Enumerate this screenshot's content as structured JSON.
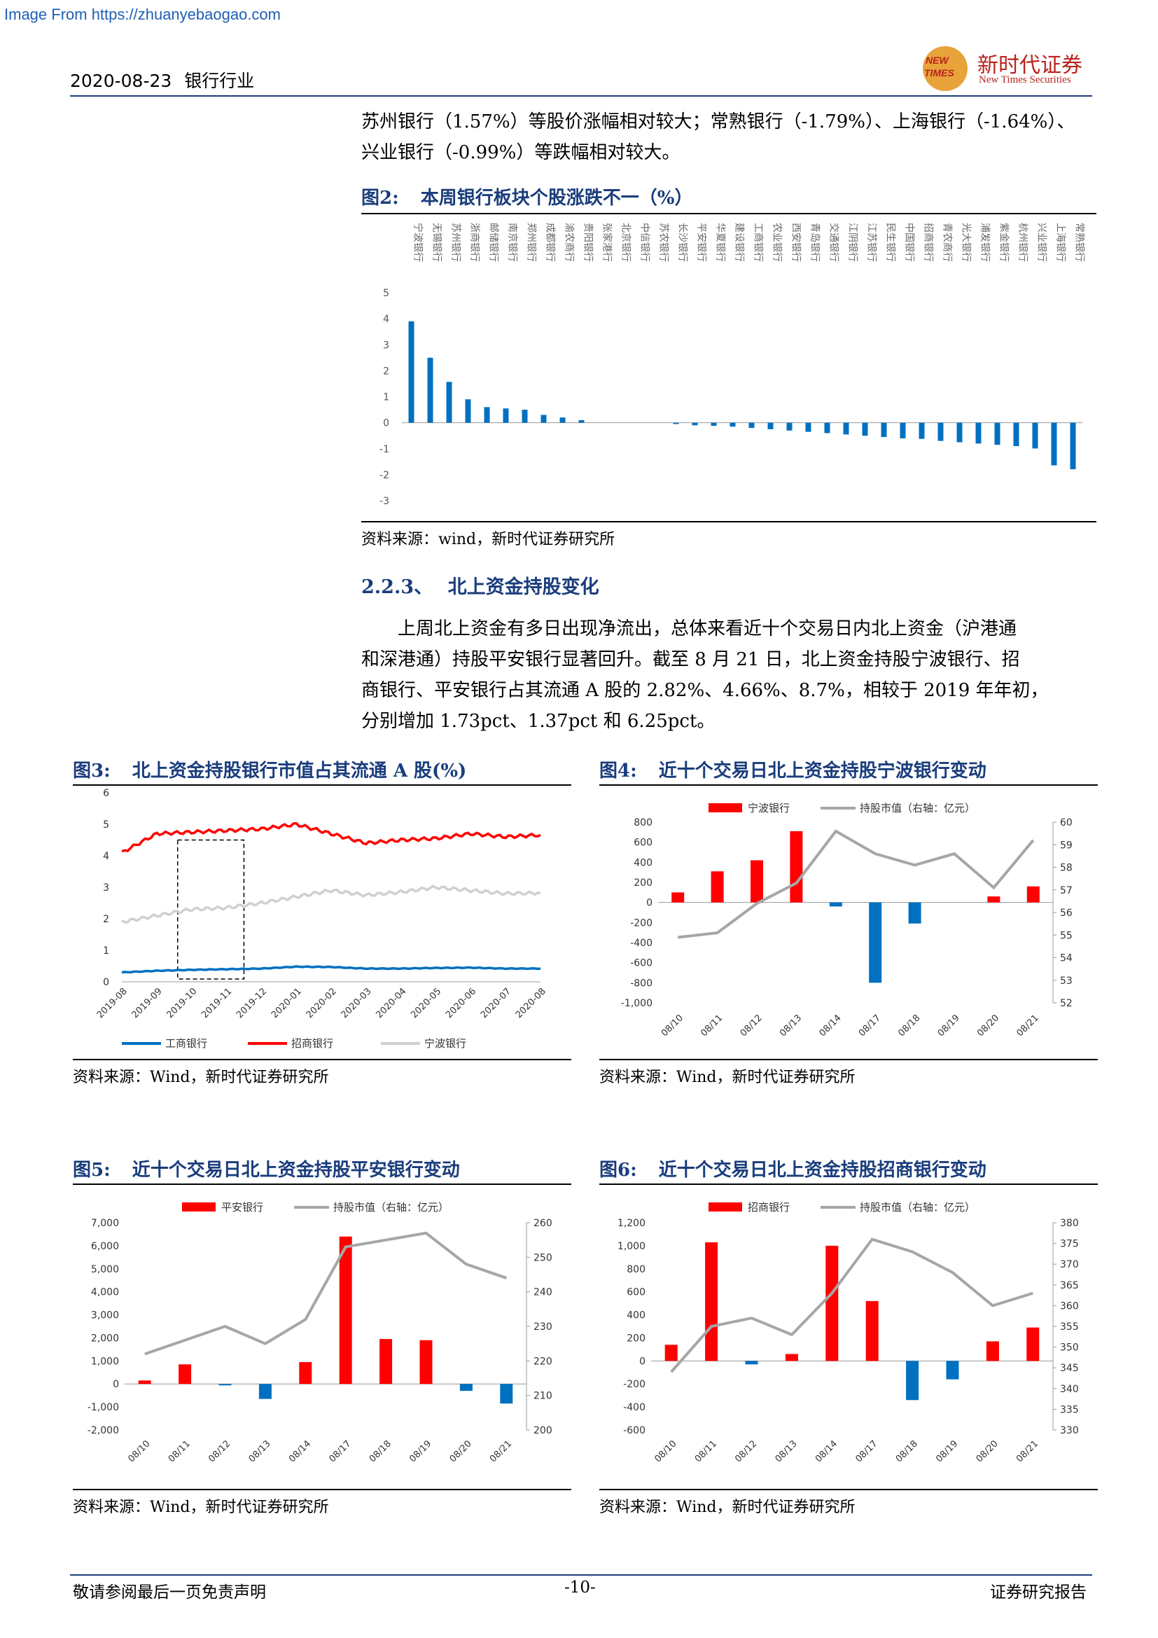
{
  "watermark": "Image From https://zhuanyebaogao.com",
  "header": {
    "date": "2020-08-23",
    "industry": "银行行业",
    "logo_badge_top": "NEW",
    "logo_badge_bottom": "TIMES",
    "logo_cn": "新时代证券",
    "logo_en": "New Times Securities"
  },
  "intro_lines": [
    "苏州银行（1.57%）等股价涨幅相对较大；常熟银行（-1.79%）、上海银行（-1.64%）、",
    "兴业银行（-0.99%）等跌幅相对较大。"
  ],
  "fig2": {
    "label": "图2:",
    "title": "本周银行板块个股涨跌不一（%）",
    "source": "资料来源：wind，新时代证券研究所"
  },
  "section": {
    "number": "2.2.3、",
    "title": "北上资金持股变化",
    "lines": [
      "上周北上资金有多日出现净流出，总体来看近十个交易日内北上资金（沪港通",
      "和深港通）持股平安银行显著回升。截至 8 月 21 日，北上资金持股宁波银行、招",
      "商银行、平安银行占其流通 A 股的 2.82%、4.66%、8.7%，相较于 2019 年年初，",
      "分别增加 1.73pct、1.37pct 和 6.25pct。"
    ]
  },
  "fig3": {
    "label": "图3:",
    "title": "北上资金持股银行市值占其流通 A 股(%)",
    "source": "资料来源：Wind，新时代证券研究所"
  },
  "fig4": {
    "label": "图4:",
    "title": "近十个交易日北上资金持股宁波银行变动",
    "source": "资料来源：Wind，新时代证券研究所"
  },
  "fig5": {
    "label": "图5:",
    "title": "近十个交易日北上资金持股平安银行变动",
    "source": "资料来源：Wind，新时代证券研究所"
  },
  "fig6": {
    "label": "图6:",
    "title": "近十个交易日北上资金持股招商银行变动",
    "source": "资料来源：Wind，新时代证券研究所"
  },
  "footer": {
    "left": "敬请参阅最后一页免责声明",
    "center": "-10-",
    "right": "证券研究报告"
  },
  "colors": {
    "blue": "#0070c0",
    "red": "#ff0000",
    "gray": "#a6a6a6",
    "navy": "#1a3d7c",
    "light_gray": "#d0d0d0"
  },
  "chart_data": [
    {
      "id": "fig2",
      "type": "bar",
      "categories": [
        "宁波银行",
        "无锡银行",
        "苏州银行",
        "浙商银行",
        "邮储银行",
        "南京银行",
        "郑州银行",
        "成都银行",
        "渝农商行",
        "贵阳银行",
        "张家港行",
        "北京银行",
        "中信银行",
        "苏农银行",
        "长沙银行",
        "平安银行",
        "华夏银行",
        "建设银行",
        "工商银行",
        "农业银行",
        "西安银行",
        "青岛银行",
        "交通银行",
        "江阴银行",
        "江苏银行",
        "民生银行",
        "中国银行",
        "招商银行",
        "青农商行",
        "光大银行",
        "浦发银行",
        "紫金银行",
        "杭州银行",
        "兴业银行",
        "上海银行",
        "常熟银行"
      ],
      "values": [
        3.9,
        2.5,
        1.57,
        0.9,
        0.6,
        0.55,
        0.5,
        0.3,
        0.2,
        0.1,
        0,
        0,
        0,
        0,
        -0.05,
        -0.1,
        -0.12,
        -0.15,
        -0.2,
        -0.25,
        -0.3,
        -0.35,
        -0.4,
        -0.45,
        -0.5,
        -0.55,
        -0.6,
        -0.62,
        -0.7,
        -0.75,
        -0.8,
        -0.85,
        -0.9,
        -0.99,
        -1.64,
        -1.79
      ],
      "ylim": [
        -3,
        5
      ],
      "yticks": [
        "5",
        "4",
        "3",
        "2",
        "1",
        "0",
        "-1",
        "-2",
        "-3"
      ]
    },
    {
      "id": "fig3",
      "type": "line",
      "xlabels": [
        "2019-08",
        "2019-09",
        "2019-10",
        "2019-11",
        "2019-12",
        "2020-01",
        "2020-02",
        "2020-03",
        "2020-04",
        "2020-05",
        "2020-06",
        "2020-07",
        "2020-08"
      ],
      "ylim": [
        0,
        6
      ],
      "yticks": [
        "6",
        "5",
        "4",
        "3",
        "2",
        "1",
        "0"
      ],
      "series": [
        {
          "name": "工商银行",
          "values": [
            0.3,
            0.35,
            0.38,
            0.4,
            0.42,
            0.48,
            0.47,
            0.42,
            0.42,
            0.44,
            0.45,
            0.42,
            0.42
          ]
        },
        {
          "name": "招商银行",
          "values": [
            4.1,
            4.7,
            4.75,
            4.8,
            4.85,
            5.0,
            4.7,
            4.4,
            4.5,
            4.55,
            4.7,
            4.6,
            4.66
          ]
        },
        {
          "name": "宁波银行",
          "values": [
            1.9,
            2.1,
            2.3,
            2.35,
            2.5,
            2.7,
            2.9,
            2.75,
            2.85,
            3.0,
            2.9,
            2.8,
            2.82
          ]
        }
      ]
    },
    {
      "id": "fig4",
      "type": "bar+line",
      "categories": [
        "08/10",
        "08/11",
        "08/12",
        "08/13",
        "08/14",
        "08/17",
        "08/18",
        "08/19",
        "08/20",
        "08/21"
      ],
      "left_ylim": [
        -1000,
        800
      ],
      "left_yticks": [
        "800",
        "600",
        "400",
        "200",
        "0",
        "-200",
        "-400",
        "-600",
        "-800",
        "-1,000"
      ],
      "right_ylim": [
        52,
        60
      ],
      "right_yticks": [
        "60",
        "59",
        "58",
        "57",
        "56",
        "55",
        "54",
        "53",
        "52"
      ],
      "series": [
        {
          "name": "宁波银行",
          "values": [
            100,
            310,
            420,
            710,
            -40,
            -800,
            -210,
            0,
            60,
            160
          ]
        },
        {
          "name": "持股市值（右轴：亿元）",
          "values": [
            54.9,
            55.1,
            56.4,
            57.3,
            59.6,
            58.6,
            58.1,
            58.6,
            57.1,
            59.2
          ]
        }
      ]
    },
    {
      "id": "fig5",
      "type": "bar+line",
      "categories": [
        "08/10",
        "08/11",
        "08/12",
        "08/13",
        "08/14",
        "08/17",
        "08/18",
        "08/19",
        "08/20",
        "08/21"
      ],
      "left_ylim": [
        -2000,
        7000
      ],
      "left_yticks": [
        "7,000",
        "6,000",
        "5,000",
        "4,000",
        "3,000",
        "2,000",
        "1,000",
        "0",
        "-1,000",
        "-2,000"
      ],
      "right_ylim": [
        200,
        260
      ],
      "right_yticks": [
        "260",
        "250",
        "240",
        "230",
        "220",
        "210",
        "200"
      ],
      "series": [
        {
          "name": "平安银行",
          "values": [
            150,
            850,
            -50,
            -650,
            950,
            6400,
            1950,
            1900,
            -300,
            -850
          ]
        },
        {
          "name": "持股市值（右轴：亿元）",
          "values": [
            222,
            226,
            230,
            225,
            232,
            253,
            255,
            257,
            248,
            244
          ]
        }
      ]
    },
    {
      "id": "fig6",
      "type": "bar+line",
      "categories": [
        "08/10",
        "08/11",
        "08/12",
        "08/13",
        "08/14",
        "08/17",
        "08/18",
        "08/19",
        "08/20",
        "08/21"
      ],
      "left_ylim": [
        -600,
        1200
      ],
      "left_yticks": [
        "1,200",
        "1,000",
        "800",
        "600",
        "400",
        "200",
        "0",
        "-200",
        "-400",
        "-600"
      ],
      "right_ylim": [
        330,
        380
      ],
      "right_yticks": [
        "380",
        "375",
        "370",
        "365",
        "360",
        "355",
        "350",
        "345",
        "340",
        "335",
        "330"
      ],
      "series": [
        {
          "name": "招商银行",
          "values": [
            140,
            1030,
            -30,
            60,
            1000,
            520,
            -340,
            -160,
            170,
            290
          ]
        },
        {
          "name": "持股市值（右轴：亿元）",
          "values": [
            344,
            355,
            357,
            353,
            363,
            376,
            373,
            368,
            360,
            363
          ]
        }
      ]
    }
  ]
}
